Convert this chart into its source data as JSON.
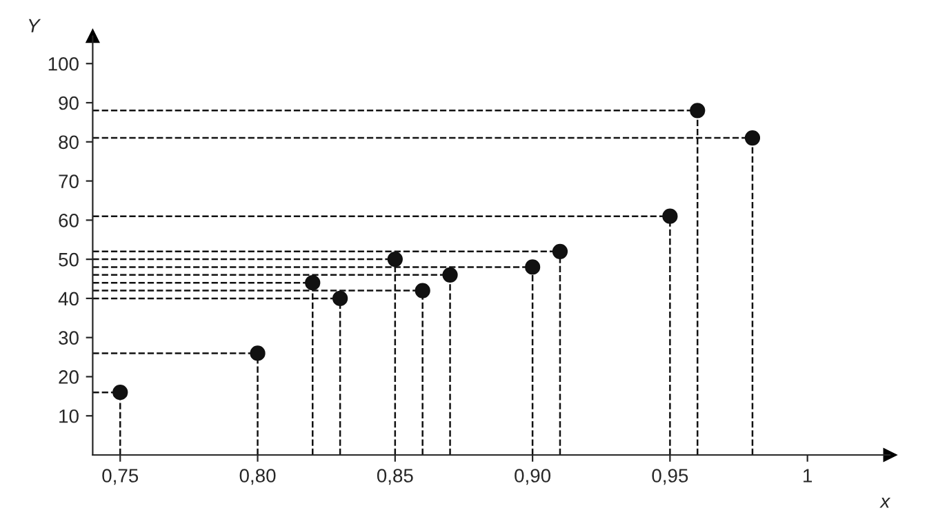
{
  "chart_data": {
    "type": "scatter",
    "xlabel": "x",
    "ylabel": "Y",
    "x": [
      0.75,
      0.8,
      0.82,
      0.83,
      0.85,
      0.86,
      0.87,
      0.9,
      0.91,
      0.95,
      0.96,
      0.98
    ],
    "values": [
      16,
      26,
      44,
      40,
      50,
      42,
      46,
      48,
      52,
      61,
      88,
      81
    ],
    "errors": [
      [
        0,
        16
      ],
      [
        0,
        26
      ],
      [
        0,
        44
      ],
      [
        0,
        40
      ],
      [
        0,
        50
      ],
      [
        0,
        42
      ],
      [
        0,
        46
      ],
      [
        0,
        48
      ],
      [
        0,
        52
      ],
      [
        0,
        61
      ],
      [
        0,
        88
      ],
      [
        0,
        81
      ]
    ],
    "xerrors": [
      [
        0.74,
        0.75
      ],
      [
        0.74,
        0.8
      ],
      [
        0.74,
        0.82
      ],
      [
        0.74,
        0.83
      ],
      [
        0.74,
        0.85
      ],
      [
        0.74,
        0.86
      ],
      [
        0.74,
        0.87
      ],
      [
        0.74,
        0.9
      ],
      [
        0.74,
        0.91
      ],
      [
        0.74,
        0.95
      ],
      [
        0.74,
        0.96
      ],
      [
        0.74,
        0.98
      ]
    ],
    "color": "#111111",
    "marker": "circle",
    "line_style": "dashed",
    "xlim": [
      0.74,
      1.03
    ],
    "ylim": [
      0,
      107
    ],
    "xticks": [
      {
        "value": 0.75,
        "label": "0,75"
      },
      {
        "value": 0.8,
        "label": "0,80"
      },
      {
        "value": 0.85,
        "label": "0,85"
      },
      {
        "value": 0.9,
        "label": "0,90"
      },
      {
        "value": 0.95,
        "label": "0,95"
      },
      1
    ],
    "yticks": [
      10,
      20,
      30,
      40,
      50,
      60,
      70,
      80,
      90,
      100
    ],
    "grid": false
  }
}
